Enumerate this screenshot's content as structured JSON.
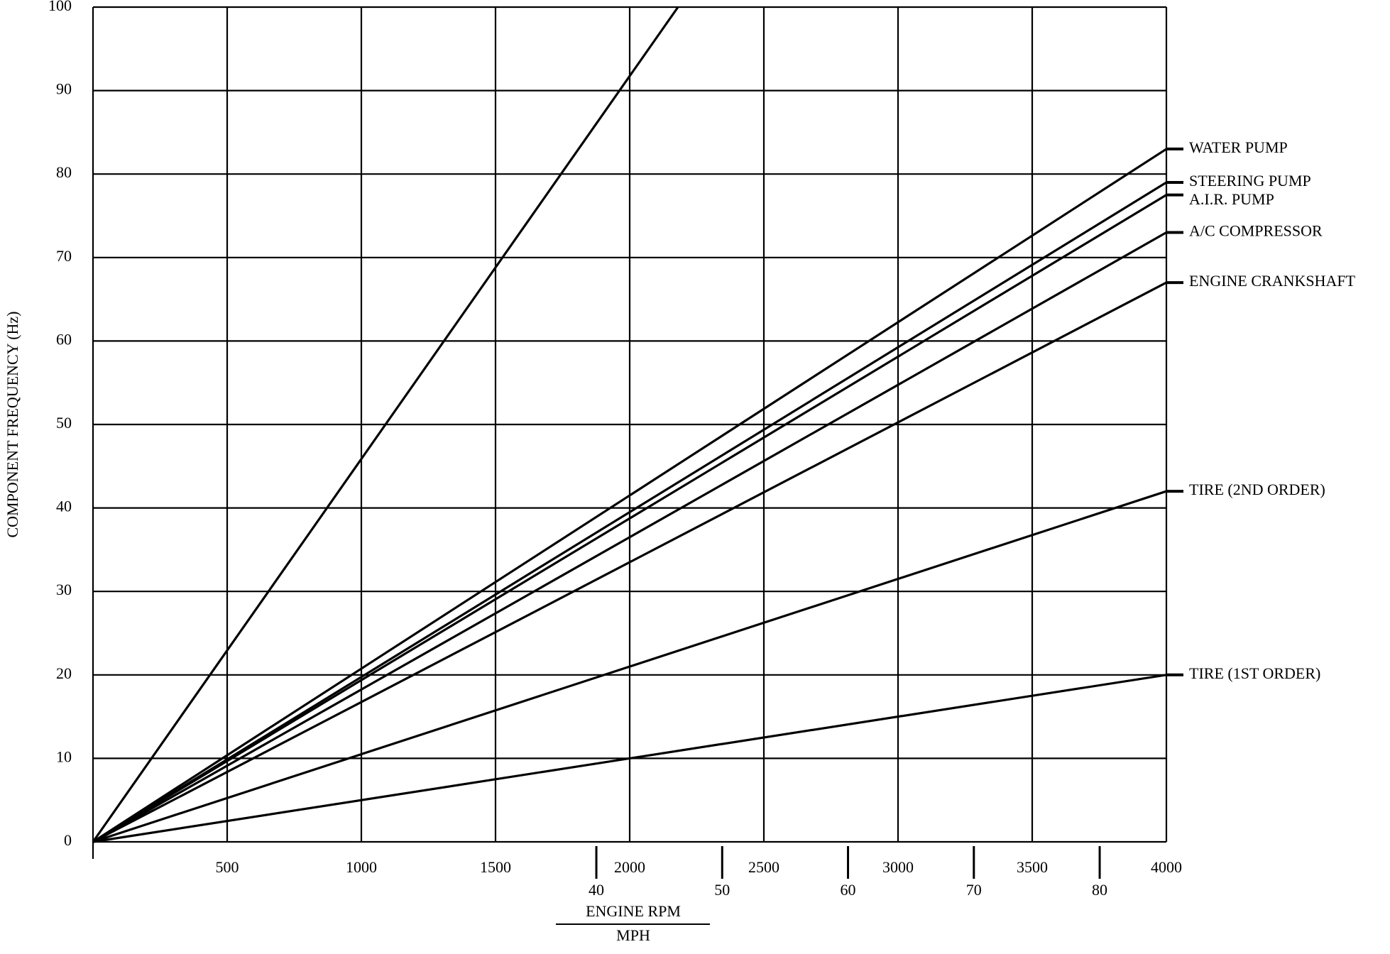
{
  "chart_data": {
    "type": "line",
    "ylabel": "COMPONENT FREQUENCY (Hz)",
    "xlabel": "ENGINE RPM",
    "x2label": "MPH",
    "xlim": [
      0,
      4000
    ],
    "xticks": [
      500,
      1000,
      1500,
      2000,
      2500,
      3000,
      3500,
      4000
    ],
    "x2lim": [
      0,
      85.3
    ],
    "x2ticks": [
      40,
      50,
      60,
      70,
      80
    ],
    "ylim": [
      0,
      100
    ],
    "yticks": [
      0,
      10,
      20,
      30,
      40,
      50,
      60,
      70,
      80,
      90,
      100
    ],
    "grid": true,
    "series": [
      {
        "x": [
          0,
          2180
        ],
        "values": [
          0,
          100
        ],
        "color": "#000000"
      },
      {
        "name": "WATER PUMP",
        "x": [
          0,
          4000
        ],
        "values": [
          0,
          83
        ],
        "color": "#000000"
      },
      {
        "name": "STEERING PUMP",
        "x": [
          0,
          4000
        ],
        "values": [
          0,
          79
        ],
        "color": "#000000"
      },
      {
        "name": "A.I.R. PUMP",
        "x": [
          0,
          4000
        ],
        "values": [
          0,
          77.5
        ],
        "color": "#000000"
      },
      {
        "name": "A/C COMPRESSOR",
        "x": [
          0,
          4000
        ],
        "values": [
          0,
          73
        ],
        "color": "#000000"
      },
      {
        "name": "ENGINE CRANKSHAFT",
        "x": [
          0,
          4000
        ],
        "values": [
          0,
          67
        ],
        "color": "#000000"
      },
      {
        "name": "TIRE (2ND ORDER)",
        "x": [
          0,
          4000
        ],
        "values": [
          0,
          42
        ],
        "color": "#000000"
      },
      {
        "name": "TIRE (1ST ORDER)",
        "x": [
          0,
          4000
        ],
        "values": [
          0,
          20
        ],
        "color": "#000000"
      }
    ]
  }
}
